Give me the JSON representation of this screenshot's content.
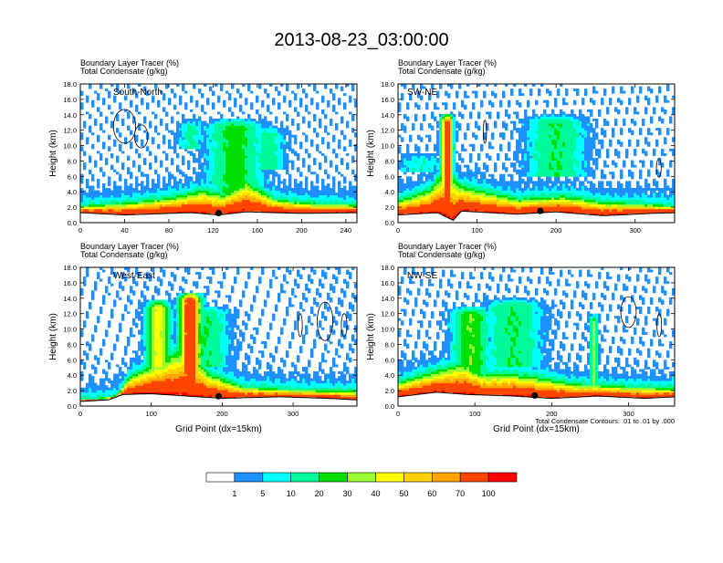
{
  "title": "2013-08-23_03:00:00",
  "chart_data": {
    "type": "heatmap",
    "panels": [
      {
        "subtitle_line1": "Boundary Layer Tracer    (%)",
        "subtitle_line2": "Total Condensate    (g/kg)",
        "label": "South-North",
        "ylabel": "Height (km)",
        "xlabel": "",
        "xlim": [
          0,
          250
        ],
        "xticks": [
          "0",
          "40",
          "80",
          "120",
          "160",
          "200",
          "240"
        ],
        "ylim": [
          0,
          18
        ],
        "yticks": [
          "0.0",
          "2.0",
          "4.0",
          "6.0",
          "8.0",
          "10.0",
          "12.0",
          "14.0",
          "16.0",
          "18.0"
        ],
        "terrain": [
          [
            0,
            1.3
          ],
          [
            40,
            1.0
          ],
          [
            80,
            1.2
          ],
          [
            100,
            1.3
          ],
          [
            125,
            1.0
          ],
          [
            150,
            1.4
          ],
          [
            200,
            1.2
          ],
          [
            250,
            1.3
          ]
        ],
        "bl_top": [
          [
            0,
            2.2
          ],
          [
            50,
            2.8
          ],
          [
            90,
            3.6
          ],
          [
            110,
            4.4
          ],
          [
            130,
            3.8
          ],
          [
            150,
            5.6
          ],
          [
            175,
            3.2
          ],
          [
            210,
            2.6
          ],
          [
            250,
            2.4
          ]
        ],
        "plumes": [
          {
            "x": 140,
            "base": 4,
            "top": 13.5,
            "halfwidth": 20,
            "intensity": 0.25
          },
          {
            "x": 100,
            "base": 10.5,
            "top": 13.5,
            "halfwidth": 10,
            "intensity": 0.12
          },
          {
            "x": 170,
            "base": 8,
            "top": 12.5,
            "halfwidth": 12,
            "intensity": 0.15
          }
        ],
        "clouds": [
          {
            "x": 40,
            "h": 12.5,
            "w": 20,
            "t": 2.2
          },
          {
            "x": 55,
            "h": 11.2,
            "w": 12,
            "t": 1.5
          }
        ],
        "markers_x": [
          125
        ]
      },
      {
        "subtitle_line1": "Boundary Layer Tracer    (%)",
        "subtitle_line2": "Total Condensate    (g/kg)",
        "label": "SW-NE",
        "ylabel": "Height (km)",
        "xlabel": "",
        "xlim": [
          0,
          350
        ],
        "xticks": [
          "0",
          "100",
          "200",
          "300"
        ],
        "ylim": [
          0,
          18
        ],
        "yticks": [
          "0.0",
          "2.0",
          "4.0",
          "6.0",
          "8.0",
          "10.0",
          "12.0",
          "14.0",
          "16.0",
          "18.0"
        ],
        "terrain": [
          [
            0,
            1.0
          ],
          [
            50,
            1.3
          ],
          [
            70,
            0.3
          ],
          [
            80,
            1.5
          ],
          [
            150,
            1.1
          ],
          [
            200,
            1.4
          ],
          [
            260,
            0.9
          ],
          [
            320,
            1.2
          ],
          [
            350,
            1.3
          ]
        ],
        "bl_top": [
          [
            0,
            3.0
          ],
          [
            40,
            4.5
          ],
          [
            60,
            7.0
          ],
          [
            80,
            5.0
          ],
          [
            150,
            3.2
          ],
          [
            210,
            3.6
          ],
          [
            260,
            2.8
          ],
          [
            330,
            2.4
          ],
          [
            350,
            2.2
          ]
        ],
        "plumes": [
          {
            "x": 62,
            "base": 4,
            "top": 14.2,
            "halfwidth": 6,
            "intensity": 0.85
          },
          {
            "x": 200,
            "base": 7,
            "top": 14,
            "halfwidth": 30,
            "intensity": 0.2
          },
          {
            "x": 30,
            "base": 7.5,
            "top": 9,
            "halfwidth": 25,
            "intensity": 0.1
          }
        ],
        "clouds": [
          {
            "x": 330,
            "h": 7.1,
            "w": 6,
            "t": 1.2
          },
          {
            "x": 110,
            "h": 11.8,
            "w": 4,
            "t": 1.5
          }
        ],
        "markers_x": [
          180
        ]
      },
      {
        "subtitle_line1": "Boundary Layer Tracer    (%)",
        "subtitle_line2": "Total Condensate    (g/kg)",
        "label": "West-East",
        "ylabel": "Height (km)",
        "xlabel": "Grid Point (dx=15km)",
        "xlim": [
          0,
          390
        ],
        "xticks": [
          "0",
          "100",
          "200",
          "300"
        ],
        "ylim": [
          0,
          18
        ],
        "yticks": [
          "0.0",
          "2.0",
          "4.0",
          "6.0",
          "8.0",
          "10.0",
          "12.0",
          "14.0",
          "16.0",
          "18.0"
        ],
        "terrain": [
          [
            0,
            0.6
          ],
          [
            40,
            0.8
          ],
          [
            60,
            1.5
          ],
          [
            100,
            1.6
          ],
          [
            150,
            1.3
          ],
          [
            200,
            1.0
          ],
          [
            280,
            1.2
          ],
          [
            350,
            1.0
          ],
          [
            390,
            0.8
          ]
        ],
        "bl_top": [
          [
            0,
            0.9
          ],
          [
            50,
            1.2
          ],
          [
            70,
            4.0
          ],
          [
            110,
            6.0
          ],
          [
            150,
            8.0
          ],
          [
            180,
            4.5
          ],
          [
            230,
            2.6
          ],
          [
            300,
            2.2
          ],
          [
            390,
            2.0
          ]
        ],
        "plumes": [
          {
            "x": 155,
            "base": 4,
            "top": 14.8,
            "halfwidth": 12,
            "intensity": 0.95
          },
          {
            "x": 110,
            "base": 6,
            "top": 13.8,
            "halfwidth": 14,
            "intensity": 0.45
          },
          {
            "x": 175,
            "base": 6,
            "top": 13,
            "halfwidth": 28,
            "intensity": 0.2
          }
        ],
        "clouds": [
          {
            "x": 345,
            "h": 11,
            "w": 22,
            "t": 2.5
          },
          {
            "x": 310,
            "h": 10.5,
            "w": 6,
            "t": 1.5
          },
          {
            "x": 372,
            "h": 10.5,
            "w": 8,
            "t": 1.5
          }
        ],
        "markers_x": [
          195
        ]
      },
      {
        "subtitle_line1": "Boundary Layer Tracer    (%)",
        "subtitle_line2": "Total Condensate    (g/kg)",
        "label": "NW-SE",
        "ylabel": "Height (km)",
        "xlabel": "Grid Point (dx=15km)",
        "xlim": [
          0,
          360
        ],
        "xticks": [
          "0",
          "100",
          "200",
          "300"
        ],
        "ylim": [
          0,
          18
        ],
        "yticks": [
          "0.0",
          "2.0",
          "4.0",
          "6.0",
          "8.0",
          "10.0",
          "12.0",
          "14.0",
          "16.0",
          "18.0"
        ],
        "terrain": [
          [
            0,
            1.2
          ],
          [
            50,
            1.8
          ],
          [
            90,
            1.5
          ],
          [
            150,
            1.3
          ],
          [
            200,
            1.0
          ],
          [
            260,
            1.3
          ],
          [
            320,
            1.0
          ],
          [
            360,
            1.2
          ]
        ],
        "bl_top": [
          [
            0,
            3.2
          ],
          [
            50,
            4.8
          ],
          [
            85,
            5.8
          ],
          [
            110,
            4.2
          ],
          [
            150,
            4.4
          ],
          [
            190,
            3.8
          ],
          [
            230,
            3.0
          ],
          [
            300,
            2.6
          ],
          [
            360,
            2.4
          ]
        ],
        "plumes": [
          {
            "x": 95,
            "base": 5,
            "top": 13,
            "halfwidth": 20,
            "intensity": 0.3
          },
          {
            "x": 150,
            "base": 6,
            "top": 14,
            "halfwidth": 30,
            "intensity": 0.2
          },
          {
            "x": 255,
            "base": 3,
            "top": 12,
            "halfwidth": 4,
            "intensity": 0.35
          }
        ],
        "clouds": [
          {
            "x": 300,
            "h": 12.2,
            "w": 20,
            "t": 2.0
          },
          {
            "x": 340,
            "h": 10.5,
            "w": 6,
            "t": 1.5
          }
        ],
        "markers_x": [
          178
        ]
      }
    ],
    "contour_note": "Total Condensate Contours: .01 to .01 by .000",
    "colorbar": {
      "labels": [
        "1",
        "5",
        "10",
        "20",
        "30",
        "40",
        "50",
        "60",
        "70",
        "100"
      ],
      "colors": [
        "#ffffff",
        "#1e90ff",
        "#00ffff",
        "#00fa9a",
        "#00e000",
        "#9aff32",
        "#ffff00",
        "#ffd200",
        "#ffa500",
        "#ff4500",
        "#ff0000"
      ]
    }
  }
}
